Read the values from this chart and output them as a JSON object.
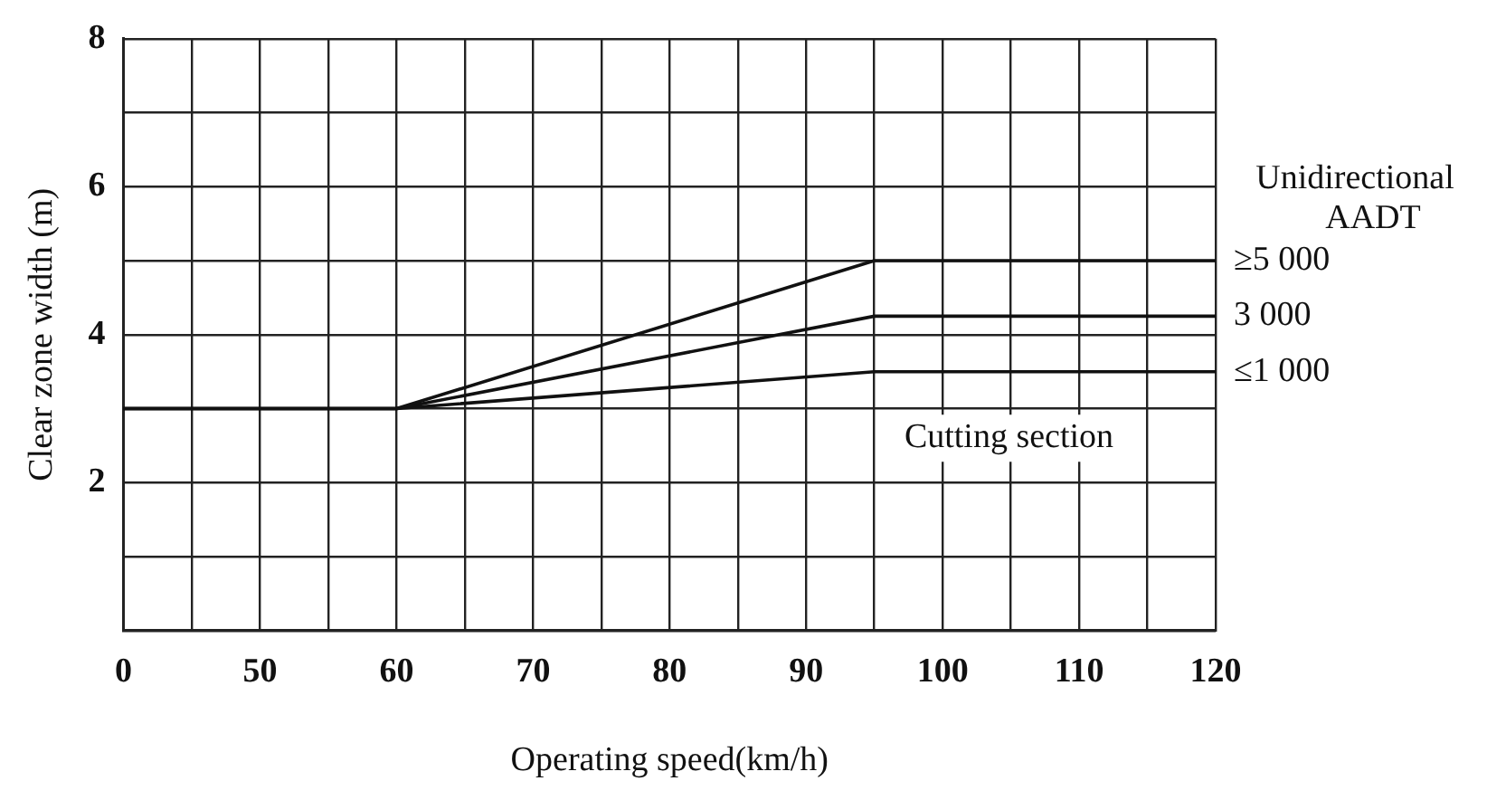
{
  "chart_data": {
    "type": "line",
    "xlabel": "Operating speed(km/h)",
    "ylabel": "Clear zone width (m)",
    "legend_title": "Unidirectional AADT",
    "categories": [
      "0",
      null,
      "50",
      null,
      "60",
      null,
      "70",
      null,
      "80",
      null,
      "90",
      null,
      "100",
      null,
      "110",
      null,
      "120"
    ],
    "series": [
      {
        "name": "≥5 000",
        "color": "#111111",
        "values": [
          3,
          null,
          null,
          null,
          3,
          null,
          null,
          null,
          null,
          null,
          null,
          5,
          null,
          null,
          null,
          null,
          5
        ]
      },
      {
        "name": "3 000",
        "color": "#111111",
        "values": [
          3,
          null,
          null,
          null,
          3,
          null,
          null,
          null,
          null,
          null,
          null,
          4.25,
          null,
          null,
          null,
          null,
          4.25
        ]
      },
      {
        "name": "≤1 000",
        "color": "#111111",
        "values": [
          3,
          null,
          null,
          null,
          3,
          null,
          null,
          null,
          null,
          null,
          null,
          3.5,
          null,
          null,
          null,
          null,
          3.5
        ]
      }
    ],
    "ylim": [
      0,
      8
    ],
    "yticks": [
      {
        "value": 0,
        "label": null
      },
      {
        "value": 1,
        "label": null
      },
      2,
      {
        "value": 3,
        "label": null
      },
      4,
      {
        "value": 5,
        "label": null
      },
      6,
      {
        "value": 7,
        "label": null
      },
      8
    ],
    "grid": true,
    "legend": false,
    "marker": "none",
    "line_style": "solid",
    "annotations": [
      "Cutting section"
    ]
  }
}
